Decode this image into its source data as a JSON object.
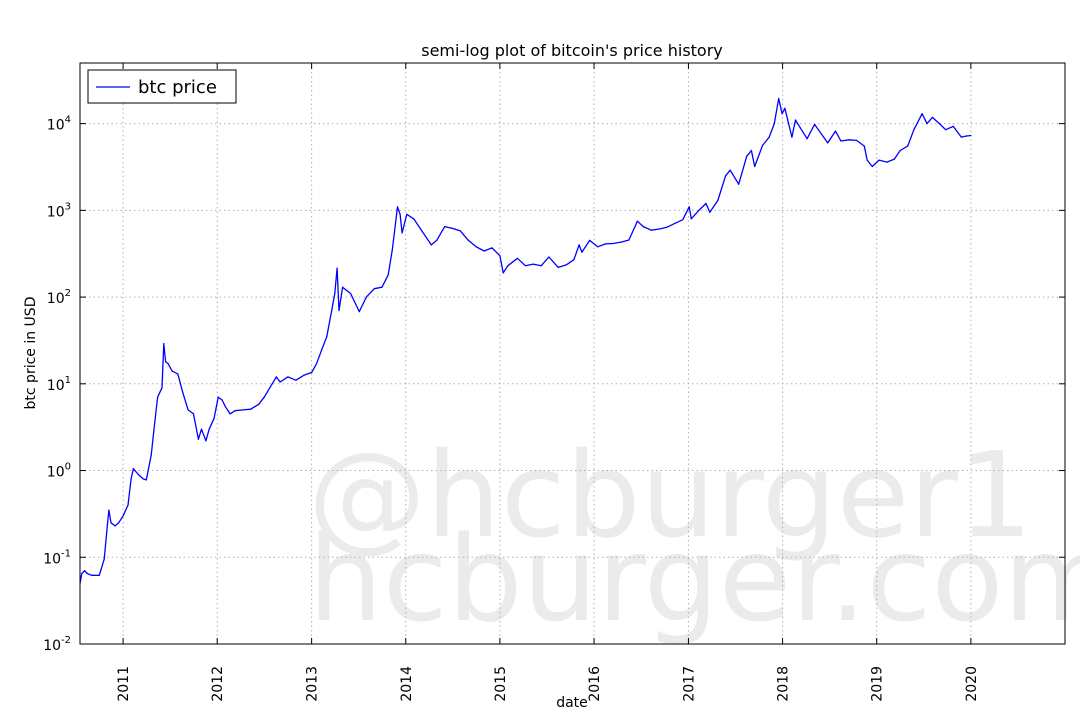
{
  "watermark": {
    "line1": "@hcburger1",
    "line2": "hcburger.com"
  },
  "chart_data": {
    "type": "line",
    "title": "semi-log plot of bitcoin's price history",
    "xlabel": "date",
    "ylabel": "btc price in USD",
    "yscale": "log",
    "ylim": [
      0.01,
      50000
    ],
    "xlim": [
      "2010-07-18",
      "2020-12-31"
    ],
    "grid": true,
    "legend_position": "top-left",
    "x_ticks": [
      "2011",
      "2012",
      "2013",
      "2014",
      "2015",
      "2016",
      "2017",
      "2018",
      "2019",
      "2020"
    ],
    "y_ticks": [
      {
        "base": "10",
        "exp": "-2",
        "value": 0.01
      },
      {
        "base": "10",
        "exp": "-1",
        "value": 0.1
      },
      {
        "base": "10",
        "exp": "0",
        "value": 1
      },
      {
        "base": "10",
        "exp": "1",
        "value": 10
      },
      {
        "base": "10",
        "exp": "2",
        "value": 100
      },
      {
        "base": "10",
        "exp": "3",
        "value": 1000
      },
      {
        "base": "10",
        "exp": "4",
        "value": 10000
      }
    ],
    "series": [
      {
        "name": "btc price",
        "color": "#0000ff",
        "points": [
          [
            "2010-07-18",
            0.05
          ],
          [
            "2010-07-25",
            0.065
          ],
          [
            "2010-08-05",
            0.07
          ],
          [
            "2010-08-15",
            0.065
          ],
          [
            "2010-09-01",
            0.062
          ],
          [
            "2010-10-01",
            0.062
          ],
          [
            "2010-10-20",
            0.095
          ],
          [
            "2010-11-02",
            0.25
          ],
          [
            "2010-11-07",
            0.35
          ],
          [
            "2010-11-15",
            0.25
          ],
          [
            "2010-12-01",
            0.23
          ],
          [
            "2010-12-15",
            0.25
          ],
          [
            "2011-01-01",
            0.3
          ],
          [
            "2011-01-20",
            0.4
          ],
          [
            "2011-02-01",
            0.8
          ],
          [
            "2011-02-10",
            1.05
          ],
          [
            "2011-03-01",
            0.9
          ],
          [
            "2011-03-20",
            0.8
          ],
          [
            "2011-04-01",
            0.78
          ],
          [
            "2011-04-20",
            1.5
          ],
          [
            "2011-05-01",
            3.0
          ],
          [
            "2011-05-15",
            7.0
          ],
          [
            "2011-06-01",
            9.0
          ],
          [
            "2011-06-08",
            29.0
          ],
          [
            "2011-06-15",
            18.0
          ],
          [
            "2011-06-25",
            17.0
          ],
          [
            "2011-07-10",
            14.0
          ],
          [
            "2011-08-01",
            13.0
          ],
          [
            "2011-08-20",
            8.0
          ],
          [
            "2011-09-10",
            5.0
          ],
          [
            "2011-10-01",
            4.5
          ],
          [
            "2011-10-20",
            2.3
          ],
          [
            "2011-11-01",
            3.0
          ],
          [
            "2011-11-18",
            2.2
          ],
          [
            "2011-12-01",
            3.0
          ],
          [
            "2011-12-20",
            4.0
          ],
          [
            "2012-01-05",
            7.0
          ],
          [
            "2012-01-20",
            6.5
          ],
          [
            "2012-02-01",
            5.5
          ],
          [
            "2012-02-20",
            4.5
          ],
          [
            "2012-03-10",
            4.9
          ],
          [
            "2012-04-10",
            5.0
          ],
          [
            "2012-05-10",
            5.1
          ],
          [
            "2012-06-10",
            5.8
          ],
          [
            "2012-07-01",
            7.0
          ],
          [
            "2012-08-01",
            10.0
          ],
          [
            "2012-08-17",
            12.0
          ],
          [
            "2012-09-01",
            10.5
          ],
          [
            "2012-10-01",
            12.0
          ],
          [
            "2012-11-01",
            11.0
          ],
          [
            "2012-12-01",
            12.5
          ],
          [
            "2013-01-01",
            13.5
          ],
          [
            "2013-01-20",
            17.0
          ],
          [
            "2013-02-10",
            25.0
          ],
          [
            "2013-03-01",
            35.0
          ],
          [
            "2013-03-20",
            70.0
          ],
          [
            "2013-04-01",
            110.0
          ],
          [
            "2013-04-10",
            215.0
          ],
          [
            "2013-04-17",
            70.0
          ],
          [
            "2013-05-01",
            130.0
          ],
          [
            "2013-06-01",
            110.0
          ],
          [
            "2013-07-05",
            68.0
          ],
          [
            "2013-08-01",
            100.0
          ],
          [
            "2013-09-01",
            125.0
          ],
          [
            "2013-10-01",
            130.0
          ],
          [
            "2013-10-25",
            180.0
          ],
          [
            "2013-11-10",
            350.0
          ],
          [
            "2013-11-30",
            1100.0
          ],
          [
            "2013-12-10",
            900.0
          ],
          [
            "2013-12-18",
            550.0
          ],
          [
            "2014-01-05",
            900.0
          ],
          [
            "2014-02-01",
            800.0
          ],
          [
            "2014-03-01",
            600.0
          ],
          [
            "2014-04-10",
            400.0
          ],
          [
            "2014-05-01",
            450.0
          ],
          [
            "2014-06-01",
            650.0
          ],
          [
            "2014-07-01",
            620.0
          ],
          [
            "2014-08-01",
            580.0
          ],
          [
            "2014-09-01",
            450.0
          ],
          [
            "2014-10-01",
            380.0
          ],
          [
            "2014-11-01",
            340.0
          ],
          [
            "2014-12-01",
            370.0
          ],
          [
            "2015-01-01",
            300.0
          ],
          [
            "2015-01-14",
            190.0
          ],
          [
            "2015-02-01",
            230.0
          ],
          [
            "2015-03-10",
            280.0
          ],
          [
            "2015-04-10",
            230.0
          ],
          [
            "2015-05-10",
            240.0
          ],
          [
            "2015-06-10",
            230.0
          ],
          [
            "2015-07-10",
            290.0
          ],
          [
            "2015-08-15",
            220.0
          ],
          [
            "2015-09-15",
            235.0
          ],
          [
            "2015-10-15",
            270.0
          ],
          [
            "2015-11-04",
            400.0
          ],
          [
            "2015-11-15",
            330.0
          ],
          [
            "2015-12-15",
            450.0
          ],
          [
            "2016-01-15",
            380.0
          ],
          [
            "2016-02-15",
            410.0
          ],
          [
            "2016-03-15",
            415.0
          ],
          [
            "2016-04-15",
            430.0
          ],
          [
            "2016-05-15",
            455.0
          ],
          [
            "2016-06-17",
            750.0
          ],
          [
            "2016-07-10",
            650.0
          ],
          [
            "2016-08-10",
            590.0
          ],
          [
            "2016-09-10",
            610.0
          ],
          [
            "2016-10-10",
            640.0
          ],
          [
            "2016-11-10",
            710.0
          ],
          [
            "2016-12-10",
            780.0
          ],
          [
            "2017-01-04",
            1100.0
          ],
          [
            "2017-01-12",
            800.0
          ],
          [
            "2017-02-10",
            1000.0
          ],
          [
            "2017-03-10",
            1200.0
          ],
          [
            "2017-03-25",
            950.0
          ],
          [
            "2017-04-25",
            1300.0
          ],
          [
            "2017-05-25",
            2500.0
          ],
          [
            "2017-06-12",
            2900.0
          ],
          [
            "2017-07-15",
            2000.0
          ],
          [
            "2017-08-15",
            4200.0
          ],
          [
            "2017-09-02",
            4900.0
          ],
          [
            "2017-09-15",
            3200.0
          ],
          [
            "2017-10-15",
            5600.0
          ],
          [
            "2017-11-10",
            7000.0
          ],
          [
            "2017-11-30",
            10000.0
          ],
          [
            "2017-12-17",
            19500.0
          ],
          [
            "2017-12-30",
            13000.0
          ],
          [
            "2018-01-10",
            15000.0
          ],
          [
            "2018-02-06",
            7000.0
          ],
          [
            "2018-02-20",
            11000.0
          ],
          [
            "2018-03-10",
            9000.0
          ],
          [
            "2018-04-06",
            6700.0
          ],
          [
            "2018-05-05",
            9800.0
          ],
          [
            "2018-06-25",
            6000.0
          ],
          [
            "2018-07-25",
            8200.0
          ],
          [
            "2018-08-15",
            6300.0
          ],
          [
            "2018-09-15",
            6500.0
          ],
          [
            "2018-10-15",
            6400.0
          ],
          [
            "2018-11-14",
            5500.0
          ],
          [
            "2018-11-25",
            3800.0
          ],
          [
            "2018-12-15",
            3200.0
          ],
          [
            "2019-01-10",
            3800.0
          ],
          [
            "2019-02-10",
            3600.0
          ],
          [
            "2019-03-10",
            3900.0
          ],
          [
            "2019-04-02",
            4900.0
          ],
          [
            "2019-05-01",
            5500.0
          ],
          [
            "2019-05-25",
            8500.0
          ],
          [
            "2019-06-26",
            13000.0
          ],
          [
            "2019-07-15",
            10000.0
          ],
          [
            "2019-08-05",
            11800.0
          ],
          [
            "2019-09-01",
            10000.0
          ],
          [
            "2019-09-25",
            8500.0
          ],
          [
            "2019-10-25",
            9300.0
          ],
          [
            "2019-11-25",
            7000.0
          ],
          [
            "2019-12-15",
            7200.0
          ],
          [
            "2020-01-01",
            7300.0
          ]
        ]
      }
    ]
  }
}
